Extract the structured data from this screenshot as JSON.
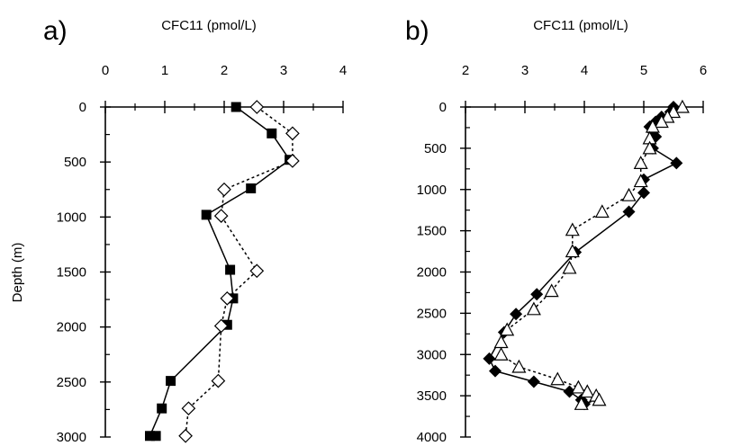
{
  "chart_data": [
    {
      "panel_label": "a)",
      "type": "line",
      "title": "CFC11 (pmol/L)",
      "xlabel": "CFC11 (pmol/L)",
      "ylabel": "Depth (m)",
      "xlim": [
        0,
        4
      ],
      "ylim": [
        0,
        3000
      ],
      "y_inverted": true,
      "x_ticks": [
        "0",
        "1",
        "2",
        "3",
        "4"
      ],
      "y_ticks": [
        "0",
        "500",
        "1000",
        "1500",
        "2000",
        "2500",
        "3000"
      ],
      "series": [
        {
          "marker": "filled-square",
          "line": "solid",
          "color": "#000000",
          "points": [
            [
              2.2,
              0
            ],
            [
              2.8,
              240
            ],
            [
              3.1,
              480
            ],
            [
              2.45,
              740
            ],
            [
              1.7,
              980
            ],
            [
              2.1,
              1480
            ],
            [
              2.15,
              1740
            ],
            [
              2.05,
              1980
            ],
            [
              1.1,
              2490
            ],
            [
              0.95,
              2740
            ],
            [
              0.75,
              2990
            ],
            [
              0.85,
              2990
            ]
          ]
        },
        {
          "marker": "open-diamond",
          "line": "dotted",
          "color": "#000000",
          "points": [
            [
              2.55,
              0
            ],
            [
              3.15,
              240
            ],
            [
              3.15,
              490
            ],
            [
              2.0,
              750
            ],
            [
              1.95,
              990
            ],
            [
              2.55,
              1490
            ],
            [
              2.05,
              1740
            ],
            [
              1.95,
              1990
            ],
            [
              1.9,
              2490
            ],
            [
              1.4,
              2740
            ],
            [
              1.35,
              2990
            ]
          ]
        }
      ]
    },
    {
      "panel_label": "b)",
      "type": "line",
      "title": "CFC11 (pmol/L)",
      "xlabel": "CFC11 (pmol/L)",
      "ylabel": "",
      "xlim": [
        2,
        6
      ],
      "ylim": [
        0,
        4000
      ],
      "y_inverted": true,
      "x_ticks": [
        "2",
        "3",
        "4",
        "5",
        "6"
      ],
      "y_ticks": [
        "0",
        "500",
        "1000",
        "1500",
        "2000",
        "2500",
        "3000",
        "3500",
        "4000"
      ],
      "series": [
        {
          "marker": "filled-diamond",
          "line": "solid",
          "color": "#000000",
          "points": [
            [
              5.5,
              0
            ],
            [
              5.45,
              60
            ],
            [
              5.3,
              120
            ],
            [
              5.2,
              180
            ],
            [
              5.1,
              240
            ],
            [
              5.15,
              300
            ],
            [
              5.2,
              360
            ],
            [
              5.15,
              500
            ],
            [
              5.55,
              680
            ],
            [
              5.0,
              880
            ],
            [
              5.0,
              1040
            ],
            [
              4.75,
              1270
            ],
            [
              3.85,
              1760
            ],
            [
              3.2,
              2270
            ],
            [
              2.85,
              2510
            ],
            [
              2.65,
              2730
            ],
            [
              2.4,
              3050
            ],
            [
              2.5,
              3200
            ],
            [
              3.15,
              3330
            ],
            [
              3.75,
              3450
            ],
            [
              3.95,
              3550
            ],
            [
              4.0,
              3600
            ]
          ]
        },
        {
          "marker": "open-triangle",
          "line": "dotted",
          "color": "#000000",
          "points": [
            [
              5.65,
              0
            ],
            [
              5.5,
              60
            ],
            [
              5.4,
              120
            ],
            [
              5.3,
              180
            ],
            [
              5.15,
              240
            ],
            [
              5.1,
              380
            ],
            [
              5.1,
              500
            ],
            [
              4.95,
              680
            ],
            [
              4.95,
              900
            ],
            [
              4.75,
              1070
            ],
            [
              4.3,
              1270
            ],
            [
              3.8,
              1490
            ],
            [
              3.8,
              1750
            ],
            [
              3.75,
              1950
            ],
            [
              3.45,
              2230
            ],
            [
              3.15,
              2450
            ],
            [
              2.7,
              2700
            ],
            [
              2.6,
              2850
            ],
            [
              2.6,
              3000
            ],
            [
              2.9,
              3150
            ],
            [
              3.55,
              3300
            ],
            [
              3.9,
              3400
            ],
            [
              4.05,
              3450
            ],
            [
              4.2,
              3500
            ],
            [
              4.25,
              3550
            ],
            [
              3.95,
              3600
            ]
          ]
        }
      ]
    }
  ]
}
